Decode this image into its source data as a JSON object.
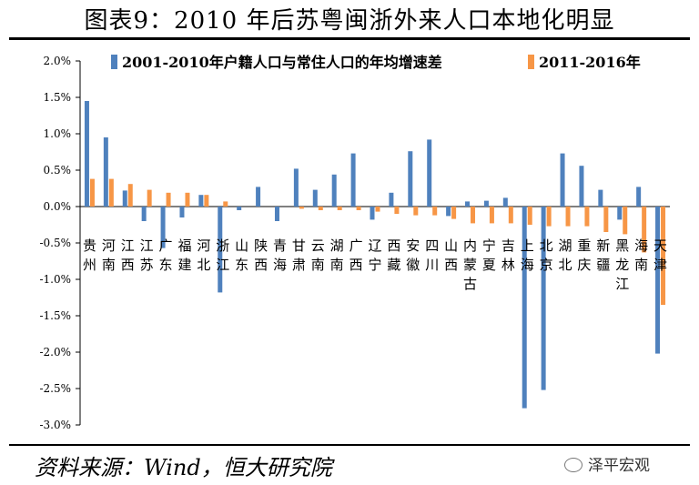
{
  "header": {
    "title": "图表9：2010 年后苏粤闽浙外来人口本地化明显"
  },
  "footer": {
    "source": "资料来源：Wind，恒大研究院",
    "watermark": "泽平宏观",
    "watermark_icon": "wechat-icon"
  },
  "chart_data": {
    "type": "bar",
    "title": "",
    "xlabel": "",
    "ylabel": "",
    "ylim": [
      -3.0,
      2.0
    ],
    "y_ticks": [
      "2.0%",
      "1.5%",
      "1.0%",
      "0.5%",
      "0.0%",
      "-0.5%",
      "-1.0%",
      "-1.5%",
      "-2.0%",
      "-2.5%",
      "-3.0%"
    ],
    "y_tick_values": [
      2.0,
      1.5,
      1.0,
      0.5,
      0.0,
      -0.5,
      -1.0,
      -1.5,
      -2.0,
      -2.5,
      -3.0
    ],
    "grid": false,
    "legend_position": "top",
    "categories": [
      "贵州",
      "河南",
      "江西",
      "江苏",
      "广东",
      "福建",
      "河北",
      "浙江",
      "山东",
      "陕西",
      "青海",
      "甘肃",
      "云南",
      "湖南",
      "广西",
      "辽宁",
      "西藏",
      "安徽",
      "四川",
      "山西",
      "内蒙古",
      "宁夏",
      "吉林",
      "上海",
      "北京",
      "湖北",
      "重庆",
      "新疆",
      "黑龙江",
      "海南",
      "天津"
    ],
    "series": [
      {
        "name": "2001-2010年户籍人口与常住人口的年均增速差",
        "color": "#4f81bd",
        "values": [
          1.45,
          0.95,
          0.22,
          -0.2,
          -0.57,
          -0.15,
          0.16,
          -1.18,
          -0.05,
          0.27,
          -0.2,
          0.52,
          0.23,
          0.44,
          0.73,
          -0.18,
          0.19,
          0.76,
          0.92,
          -0.13,
          0.07,
          0.08,
          0.12,
          -2.77,
          -2.52,
          0.73,
          0.56,
          0.23,
          -0.18,
          0.27,
          -2.02
        ]
      },
      {
        "name": "2011-2016年",
        "color": "#f79646",
        "values": [
          0.38,
          0.38,
          0.31,
          0.23,
          0.19,
          0.19,
          0.16,
          0.07,
          0.0,
          0.0,
          0.0,
          -0.03,
          -0.05,
          -0.05,
          -0.05,
          -0.07,
          -0.1,
          -0.12,
          -0.12,
          -0.17,
          -0.23,
          -0.23,
          -0.23,
          -0.25,
          -0.27,
          -0.27,
          -0.27,
          -0.35,
          -0.38,
          -0.63,
          -1.35
        ]
      }
    ]
  }
}
